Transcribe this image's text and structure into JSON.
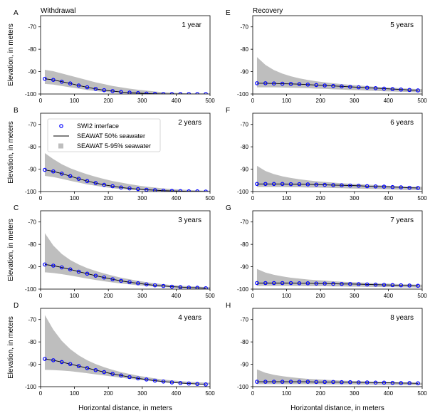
{
  "chart_data": {
    "type": "line",
    "column_titles": [
      "Withdrawal",
      "Recovery"
    ],
    "ylabel": "Elevation, in meters",
    "xlabel": "Horizontal distance, in meters",
    "xlim": [
      0,
      500
    ],
    "ylim": [
      -100,
      -65
    ],
    "xticks": [
      0,
      100,
      200,
      300,
      400,
      500
    ],
    "yticks": [
      -70,
      -80,
      -90,
      -100
    ],
    "legend": {
      "placement": "upper-left of panel B",
      "entries": [
        {
          "label": "SWI2 interface",
          "marker": "open-circle",
          "color": "#0000ff"
        },
        {
          "label": "SEAWAT 50% seawater",
          "marker": "line",
          "color": "#000000"
        },
        {
          "label": "SEAWAT 5-95% seawater",
          "marker": "square",
          "color": "#bebebe"
        }
      ]
    },
    "x": [
      12.5,
      37.5,
      62.5,
      87.5,
      112.5,
      137.5,
      162.5,
      187.5,
      212.5,
      237.5,
      262.5,
      287.5,
      312.5,
      337.5,
      362.5,
      387.5,
      412.5,
      437.5,
      462.5,
      487.5
    ],
    "panels": [
      {
        "letter": "A",
        "label": "1 year",
        "swi2": [
          -93.2,
          -93.7,
          -94.5,
          -95.3,
          -96.2,
          -97.0,
          -97.7,
          -98.3,
          -98.7,
          -99.1,
          -99.4,
          -99.6,
          -99.8,
          -99.9,
          -100,
          -100,
          -100,
          -100,
          -100,
          -100
        ],
        "seawat50": [
          -93.2,
          -93.7,
          -94.5,
          -95.3,
          -96.2,
          -97.0,
          -97.7,
          -98.3,
          -98.7,
          -99.1,
          -99.4,
          -99.6,
          -99.8,
          -99.9,
          -100,
          -100,
          -100,
          -100,
          -100,
          -100
        ],
        "band_upper": [
          -89.2,
          -89.8,
          -90.8,
          -91.8,
          -92.8,
          -93.8,
          -94.8,
          -95.6,
          -96.4,
          -97.0,
          -97.6,
          -98.1,
          -98.5,
          -98.9,
          -99.2,
          -99.4,
          -99.6,
          -99.8,
          -99.9,
          -100
        ],
        "band_lower": [
          -95.5,
          -95.8,
          -96.4,
          -97.0,
          -97.6,
          -98.2,
          -98.7,
          -99.1,
          -99.4,
          -99.6,
          -99.8,
          -99.9,
          -100,
          -100,
          -100,
          -100,
          -100,
          -100,
          -100,
          -100
        ]
      },
      {
        "letter": "B",
        "label": "2 years",
        "swi2": [
          -90.3,
          -91.0,
          -92.0,
          -93.1,
          -94.3,
          -95.3,
          -96.2,
          -97.0,
          -97.6,
          -98.2,
          -98.6,
          -98.9,
          -99.2,
          -99.4,
          -99.6,
          -99.7,
          -99.8,
          -99.9,
          -99.9,
          -100
        ],
        "seawat50": [
          -90.3,
          -91.0,
          -92.0,
          -93.1,
          -94.3,
          -95.3,
          -96.2,
          -97.0,
          -97.6,
          -98.2,
          -98.6,
          -98.9,
          -99.2,
          -99.4,
          -99.6,
          -99.7,
          -99.8,
          -99.9,
          -99.9,
          -100
        ],
        "band_upper": [
          -82.8,
          -85.5,
          -87.8,
          -89.6,
          -91.0,
          -92.3,
          -93.4,
          -94.4,
          -95.3,
          -96.0,
          -96.7,
          -97.3,
          -97.8,
          -98.2,
          -98.6,
          -98.9,
          -99.1,
          -99.3,
          -99.5,
          -99.6
        ],
        "band_lower": [
          -93.0,
          -93.5,
          -94.3,
          -95.2,
          -96.0,
          -96.8,
          -97.4,
          -98.0,
          -98.5,
          -98.9,
          -99.2,
          -99.4,
          -99.6,
          -99.8,
          -99.9,
          -100,
          -100,
          -100,
          -100,
          -100
        ]
      },
      {
        "letter": "C",
        "label": "3 years",
        "swi2": [
          -89.0,
          -89.5,
          -90.3,
          -91.2,
          -92.2,
          -93.1,
          -94.0,
          -94.8,
          -95.6,
          -96.3,
          -96.9,
          -97.4,
          -97.9,
          -98.3,
          -98.6,
          -98.9,
          -99.1,
          -99.3,
          -99.4,
          -99.6
        ],
        "seawat50": [
          -89.0,
          -89.5,
          -90.3,
          -91.2,
          -92.2,
          -93.1,
          -94.0,
          -94.8,
          -95.6,
          -96.3,
          -96.9,
          -97.4,
          -97.9,
          -98.3,
          -98.6,
          -98.9,
          -99.1,
          -99.3,
          -99.4,
          -99.6
        ],
        "band_upper": [
          -75.0,
          -80.5,
          -84.3,
          -87.0,
          -89.0,
          -90.6,
          -91.9,
          -93.0,
          -94.0,
          -94.9,
          -95.6,
          -96.3,
          -96.9,
          -97.4,
          -97.8,
          -98.2,
          -98.5,
          -98.7,
          -98.9,
          -99.1
        ],
        "band_lower": [
          -92.5,
          -92.8,
          -93.3,
          -93.9,
          -94.6,
          -95.3,
          -95.9,
          -96.5,
          -97.0,
          -97.5,
          -97.9,
          -98.3,
          -98.6,
          -98.9,
          -99.1,
          -99.3,
          -99.5,
          -99.6,
          -99.7,
          -99.8
        ]
      },
      {
        "letter": "D",
        "label": "4 years",
        "swi2": [
          -87.6,
          -88.2,
          -89.0,
          -89.9,
          -90.8,
          -91.7,
          -92.6,
          -93.5,
          -94.3,
          -95.0,
          -95.7,
          -96.3,
          -96.8,
          -97.3,
          -97.7,
          -98.1,
          -98.4,
          -98.6,
          -98.8,
          -99.0
        ],
        "seawat50": [
          -87.6,
          -88.2,
          -89.0,
          -89.9,
          -90.8,
          -91.7,
          -92.6,
          -93.5,
          -94.3,
          -95.0,
          -95.7,
          -96.3,
          -96.8,
          -97.3,
          -97.7,
          -98.1,
          -98.4,
          -98.6,
          -98.8,
          -99.0
        ],
        "band_upper": [
          -68.0,
          -74.5,
          -79.5,
          -83.2,
          -86.0,
          -88.2,
          -89.9,
          -91.3,
          -92.5,
          -93.5,
          -94.3,
          -95.1,
          -95.7,
          -96.3,
          -96.8,
          -97.2,
          -97.5,
          -97.8,
          -98.0,
          -98.2
        ],
        "band_lower": [
          -92.5,
          -92.6,
          -92.8,
          -93.1,
          -93.5,
          -94.0,
          -94.5,
          -95.0,
          -95.5,
          -96.0,
          -96.5,
          -96.9,
          -97.3,
          -97.7,
          -98.0,
          -98.3,
          -98.5,
          -98.7,
          -98.9,
          -99.0
        ]
      },
      {
        "letter": "E",
        "label": "5 years",
        "swi2": [
          -95.2,
          -95.2,
          -95.3,
          -95.4,
          -95.5,
          -95.6,
          -95.8,
          -96.0,
          -96.2,
          -96.4,
          -96.6,
          -96.8,
          -97.0,
          -97.2,
          -97.4,
          -97.6,
          -97.8,
          -98.0,
          -98.2,
          -98.4
        ],
        "seawat50": [
          -95.2,
          -95.2,
          -95.3,
          -95.4,
          -95.5,
          -95.6,
          -95.8,
          -96.0,
          -96.2,
          -96.4,
          -96.6,
          -96.8,
          -97.0,
          -97.2,
          -97.4,
          -97.6,
          -97.8,
          -98.0,
          -98.2,
          -98.4
        ],
        "band_upper": [
          -83.5,
          -87.0,
          -89.3,
          -90.9,
          -92.1,
          -93.0,
          -93.7,
          -94.3,
          -94.8,
          -95.2,
          -95.6,
          -95.9,
          -96.2,
          -96.5,
          -96.8,
          -97.0,
          -97.2,
          -97.4,
          -97.6,
          -97.8
        ],
        "band_lower": [
          -97.0,
          -97.0,
          -97.0,
          -97.1,
          -97.2,
          -97.3,
          -97.4,
          -97.6,
          -97.7,
          -97.9,
          -98.0,
          -98.2,
          -98.3,
          -98.5,
          -98.6,
          -98.8,
          -98.9,
          -99.0,
          -99.1,
          -99.2
        ]
      },
      {
        "letter": "F",
        "label": "6 years",
        "swi2": [
          -96.6,
          -96.6,
          -96.6,
          -96.6,
          -96.7,
          -96.7,
          -96.8,
          -96.9,
          -97.0,
          -97.1,
          -97.2,
          -97.3,
          -97.4,
          -97.6,
          -97.7,
          -97.8,
          -98.0,
          -98.1,
          -98.3,
          -98.4
        ],
        "seawat50": [
          -96.6,
          -96.6,
          -96.6,
          -96.6,
          -96.7,
          -96.7,
          -96.8,
          -96.9,
          -97.0,
          -97.1,
          -97.2,
          -97.3,
          -97.4,
          -97.6,
          -97.7,
          -97.8,
          -98.0,
          -98.1,
          -98.3,
          -98.4
        ],
        "band_upper": [
          -88.5,
          -90.8,
          -92.2,
          -93.2,
          -93.9,
          -94.5,
          -95.0,
          -95.4,
          -95.7,
          -96.0,
          -96.3,
          -96.5,
          -96.7,
          -96.9,
          -97.1,
          -97.3,
          -97.5,
          -97.6,
          -97.8,
          -97.9
        ],
        "band_lower": [
          -98.0,
          -98.0,
          -98.0,
          -98.0,
          -98.1,
          -98.1,
          -98.2,
          -98.2,
          -98.3,
          -98.4,
          -98.5,
          -98.6,
          -98.7,
          -98.8,
          -98.9,
          -99.0,
          -99.1,
          -99.2,
          -99.3,
          -99.3
        ]
      },
      {
        "letter": "G",
        "label": "7 years",
        "swi2": [
          -97.3,
          -97.3,
          -97.3,
          -97.3,
          -97.3,
          -97.4,
          -97.4,
          -97.5,
          -97.5,
          -97.6,
          -97.7,
          -97.7,
          -97.8,
          -97.9,
          -98.0,
          -98.1,
          -98.2,
          -98.3,
          -98.4,
          -98.5
        ],
        "seawat50": [
          -97.3,
          -97.3,
          -97.3,
          -97.3,
          -97.3,
          -97.4,
          -97.4,
          -97.5,
          -97.5,
          -97.6,
          -97.7,
          -97.7,
          -97.8,
          -97.9,
          -98.0,
          -98.1,
          -98.2,
          -98.3,
          -98.4,
          -98.5
        ],
        "band_upper": [
          -91.0,
          -92.6,
          -93.6,
          -94.3,
          -94.9,
          -95.3,
          -95.7,
          -96.0,
          -96.2,
          -96.5,
          -96.7,
          -96.9,
          -97.0,
          -97.2,
          -97.4,
          -97.5,
          -97.6,
          -97.8,
          -97.9,
          -98.0
        ],
        "band_lower": [
          -98.6,
          -98.6,
          -98.6,
          -98.6,
          -98.6,
          -98.6,
          -98.7,
          -98.7,
          -98.7,
          -98.8,
          -98.8,
          -98.9,
          -98.9,
          -99.0,
          -99.0,
          -99.1,
          -99.1,
          -99.2,
          -99.2,
          -99.3
        ]
      },
      {
        "letter": "H",
        "label": "8 years",
        "swi2": [
          -97.8,
          -97.8,
          -97.8,
          -97.8,
          -97.8,
          -97.8,
          -97.8,
          -97.9,
          -97.9,
          -97.9,
          -98.0,
          -98.0,
          -98.1,
          -98.1,
          -98.2,
          -98.2,
          -98.3,
          -98.4,
          -98.4,
          -98.5
        ],
        "seawat50": [
          -97.8,
          -97.8,
          -97.8,
          -97.8,
          -97.8,
          -97.8,
          -97.8,
          -97.9,
          -97.9,
          -97.9,
          -98.0,
          -98.0,
          -98.1,
          -98.1,
          -98.2,
          -98.2,
          -98.3,
          -98.4,
          -98.4,
          -98.5
        ],
        "band_upper": [
          -92.3,
          -93.8,
          -94.7,
          -95.3,
          -95.8,
          -96.2,
          -96.5,
          -96.7,
          -96.9,
          -97.1,
          -97.3,
          -97.4,
          -97.5,
          -97.7,
          -97.8,
          -97.9,
          -98.0,
          -98.1,
          -98.2,
          -98.3
        ],
        "band_lower": [
          -98.9,
          -98.9,
          -98.9,
          -98.9,
          -98.9,
          -98.9,
          -98.9,
          -98.9,
          -99.0,
          -99.0,
          -99.0,
          -99.0,
          -99.1,
          -99.1,
          -99.1,
          -99.2,
          -99.2,
          -99.2,
          -99.3,
          -99.3
        ]
      }
    ]
  },
  "colors": {
    "band": "#bebebe",
    "swi2_marker": "#0000ff",
    "seawat_line": "#000000",
    "axes": "#000000"
  }
}
